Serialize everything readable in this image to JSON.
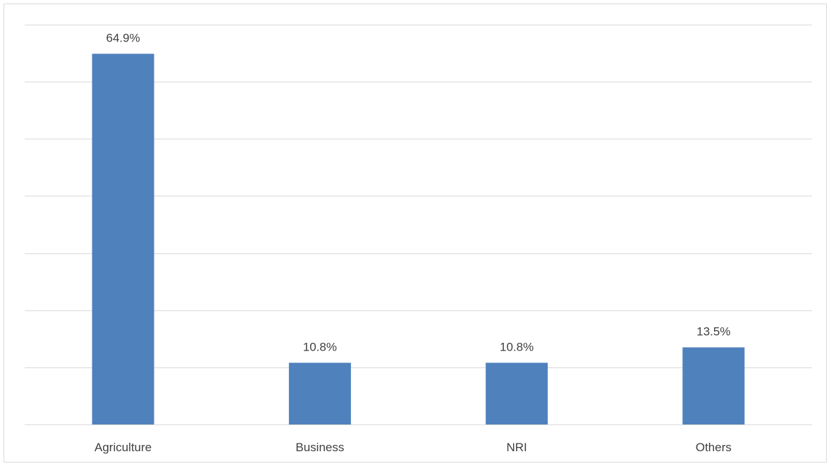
{
  "chart_data": {
    "type": "bar",
    "title": "",
    "xlabel": "",
    "ylabel": "",
    "categories": [
      "Agriculture",
      "Business",
      "NRI",
      "Others"
    ],
    "values": [
      64.9,
      10.8,
      10.8,
      13.5
    ],
    "data_labels": [
      "64.9%",
      "10.8%",
      "10.8%",
      "13.5%"
    ],
    "unit": "%",
    "ylim": [
      0,
      70
    ],
    "grid_step": 10,
    "grid": true,
    "legend": "none",
    "bar_color": "#4f81bd",
    "grid_color": "#d9d9d9"
  }
}
